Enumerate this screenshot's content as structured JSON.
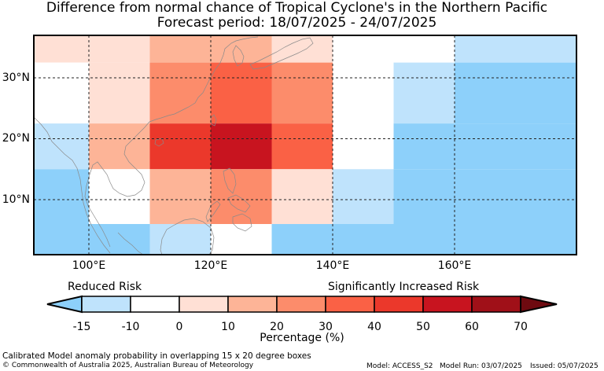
{
  "title": {
    "line1": "Difference from normal chance of Tropical Cyclone's in the Northern Pacific",
    "line2": "Forecast period: 18/07/2025 - 24/07/2025"
  },
  "map": {
    "lat_labels": [
      "30°N",
      "20°N",
      "10°N"
    ],
    "lon_labels": [
      "100°E",
      "120°E",
      "140°E",
      "160°E"
    ],
    "cell_rows_top_to_bottom": [
      {
        "lat_range": [
          32.5,
          37.5
        ],
        "cells": [
          {
            "lon": [
              90,
              110
            ],
            "color": "#ffe0d5"
          },
          {
            "lon": [
              110,
              130
            ],
            "color": "#fdb497"
          },
          {
            "lon": [
              130,
              140
            ],
            "color": "#ffe0d5"
          },
          {
            "lon": [
              140,
              160
            ],
            "color": "#ffffff"
          },
          {
            "lon": [
              160,
              180
            ],
            "color": "#bfe3fc"
          }
        ]
      },
      {
        "lat_range": [
          22.5,
          32.5
        ],
        "cells": [
          {
            "lon": [
              90,
              100
            ],
            "color": "#ffffff"
          },
          {
            "lon": [
              100,
              110
            ],
            "color": "#ffe0d5"
          },
          {
            "lon": [
              110,
              120
            ],
            "color": "#fc8c6b"
          },
          {
            "lon": [
              120,
              130
            ],
            "color": "#fa6145"
          },
          {
            "lon": [
              130,
              140
            ],
            "color": "#fc8c6b"
          },
          {
            "lon": [
              140,
              150
            ],
            "color": "#ffffff"
          },
          {
            "lon": [
              150,
              160
            ],
            "color": "#bfe3fc"
          },
          {
            "lon": [
              160,
              180
            ],
            "color": "#8dd0fa"
          }
        ]
      },
      {
        "lat_range": [
          15,
          22.5
        ],
        "cells": [
          {
            "lon": [
              90,
              100
            ],
            "color": "#bfe3fc"
          },
          {
            "lon": [
              100,
              110
            ],
            "color": "#fdb497"
          },
          {
            "lon": [
              110,
              120
            ],
            "color": "#eb382b"
          },
          {
            "lon": [
              120,
              130
            ],
            "color": "#c8141f"
          },
          {
            "lon": [
              130,
              140
            ],
            "color": "#fa6145"
          },
          {
            "lon": [
              140,
              150
            ],
            "color": "#ffffff"
          },
          {
            "lon": [
              150,
              180
            ],
            "color": "#8dd0fa"
          }
        ]
      },
      {
        "lat_range": [
          6,
          15
        ],
        "cells": [
          {
            "lon": [
              90,
              100
            ],
            "color": "#8dd0fa"
          },
          {
            "lon": [
              100,
              110
            ],
            "color": "#ffffff"
          },
          {
            "lon": [
              110,
              120
            ],
            "color": "#fdb497"
          },
          {
            "lon": [
              120,
              130
            ],
            "color": "#fc8c6b"
          },
          {
            "lon": [
              130,
              140
            ],
            "color": "#ffe0d5"
          },
          {
            "lon": [
              140,
              150
            ],
            "color": "#bfe3fc"
          },
          {
            "lon": [
              150,
              180
            ],
            "color": "#8dd0fa"
          }
        ]
      },
      {
        "lat_range": [
          0,
          6
        ],
        "cells": [
          {
            "lon": [
              90,
              110
            ],
            "color": "#8dd0fa"
          },
          {
            "lon": [
              110,
              120
            ],
            "color": "#bfe3fc"
          },
          {
            "lon": [
              120,
              130
            ],
            "color": "#ffffff"
          },
          {
            "lon": [
              130,
              180
            ],
            "color": "#8dd0fa"
          }
        ]
      }
    ]
  },
  "colorbar": {
    "left_label": "Reduced Risk",
    "right_label": "Significantly Increased Risk",
    "ticks": [
      "-15",
      "-10",
      "0",
      "10",
      "20",
      "30",
      "40",
      "50",
      "60",
      "70"
    ],
    "bins": [
      {
        "from": -15,
        "to": -10,
        "color": "#bfe3fc"
      },
      {
        "from": -10,
        "to": 0,
        "color": "#ffffff"
      },
      {
        "from": 0,
        "to": 10,
        "color": "#ffe0d5"
      },
      {
        "from": 10,
        "to": 20,
        "color": "#fdb497"
      },
      {
        "from": 20,
        "to": 30,
        "color": "#fc8c6b"
      },
      {
        "from": 30,
        "to": 40,
        "color": "#fa6145"
      },
      {
        "from": 40,
        "to": 50,
        "color": "#eb382b"
      },
      {
        "from": 50,
        "to": 60,
        "color": "#c8141f"
      },
      {
        "from": 60,
        "to": 70,
        "color": "#a01018"
      }
    ],
    "under_color": "#8dd0fa",
    "over_color": "#6e0a10",
    "title": "Percentage (%)"
  },
  "footer": {
    "note": "Calibrated Model anomaly probability in overlapping 15 x 20 degree boxes",
    "copyright": "© Commonwealth of Australia 2025, Australian Bureau of Meteorology",
    "model": "Model: ACCESS_S2",
    "model_run": "Model Run: 03/07/2025",
    "issued": "Issued: 05/07/2025"
  }
}
